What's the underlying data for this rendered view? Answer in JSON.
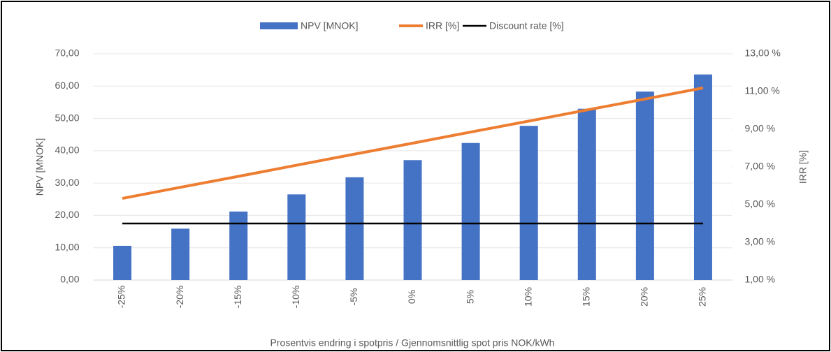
{
  "chart_data": {
    "type": "bar",
    "x_label": "Prosentvis endring i spotpris / Gjennomsnittlig spot pris NOK/kWh",
    "y_label": "NPV [MNOK]",
    "y2_label": "IRR [%]",
    "categories": [
      "-25%",
      "-20%",
      "-15%",
      "-10%",
      "-5%",
      "0%",
      "5%",
      "10%",
      "15%",
      "20%",
      "25%"
    ],
    "series": [
      {
        "name": "NPV [MNOK]",
        "type": "bar",
        "color": "#4472c4",
        "values": [
          10.6,
          15.9,
          21.2,
          26.5,
          31.8,
          37.1,
          42.4,
          47.7,
          53.0,
          58.3,
          63.6
        ]
      },
      {
        "name": "IRR [%]",
        "type": "line",
        "axis": "y2",
        "color": "#ed7d31",
        "values": [
          5.33,
          5.92,
          6.5,
          7.09,
          7.68,
          8.26,
          8.85,
          9.43,
          10.02,
          10.6,
          11.19
        ]
      },
      {
        "name": "Discount rate [%]",
        "type": "line",
        "axis": "y2",
        "color": "#000000",
        "values": [
          4,
          4,
          4,
          4,
          4,
          4,
          4,
          4,
          4,
          4,
          4
        ]
      }
    ],
    "ylim": [
      0,
      70
    ],
    "yticks": [
      {
        "value": 0,
        "label": "0,00"
      },
      {
        "value": 10,
        "label": "10,00"
      },
      {
        "value": 20,
        "label": "20,00"
      },
      {
        "value": 30,
        "label": "30,00"
      },
      {
        "value": 40,
        "label": "40,00"
      },
      {
        "value": 50,
        "label": "50,00"
      },
      {
        "value": 60,
        "label": "60,00"
      },
      {
        "value": 70,
        "label": "70,00"
      }
    ],
    "y2lim": [
      1,
      13
    ],
    "y2ticks": [
      {
        "value": 1,
        "label": "1,00 %"
      },
      {
        "value": 3,
        "label": "3,00 %"
      },
      {
        "value": 5,
        "label": "5,00 %"
      },
      {
        "value": 7,
        "label": "7,00 %"
      },
      {
        "value": 9,
        "label": "9,00 %"
      },
      {
        "value": 11,
        "label": "11,00 %"
      },
      {
        "value": 13,
        "label": "13,00 %"
      }
    ],
    "legend": "top"
  }
}
